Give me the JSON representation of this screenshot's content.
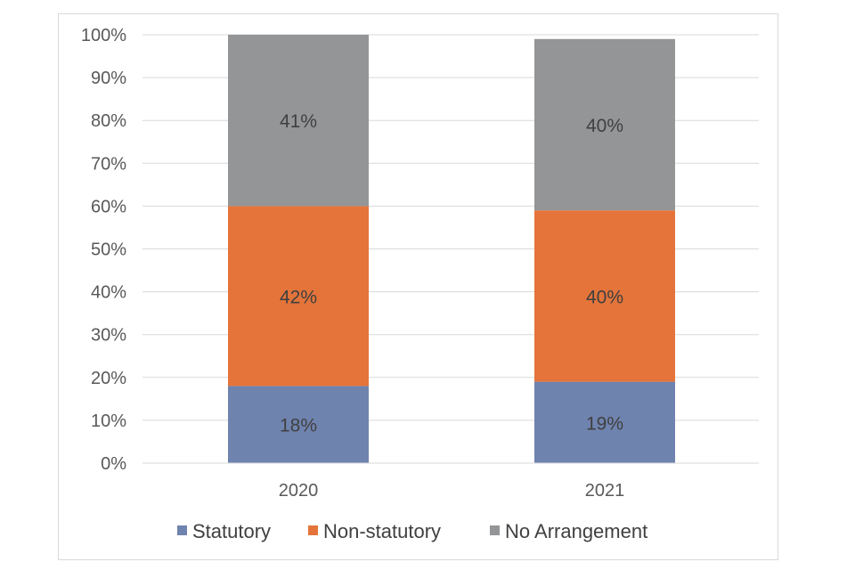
{
  "chart_data": {
    "type": "bar",
    "stacked": true,
    "categories": [
      "2020",
      "2021"
    ],
    "series": [
      {
        "name": "Statutory",
        "values": [
          18,
          19
        ],
        "labels": [
          "18%",
          "19%"
        ],
        "color": "#6F83AF"
      },
      {
        "name": "Non-statutory",
        "values": [
          42,
          40
        ],
        "labels": [
          "42%",
          "40%"
        ],
        "color": "#E4743A"
      },
      {
        "name": "No Arrangement",
        "values": [
          41,
          40
        ],
        "labels": [
          "41%",
          "40%"
        ],
        "color": "#949597"
      }
    ],
    "y_ticks": [
      "0%",
      "10%",
      "20%",
      "30%",
      "40%",
      "50%",
      "60%",
      "70%",
      "80%",
      "90%",
      "100%"
    ],
    "ylim": [
      0,
      100
    ],
    "title": "",
    "xlabel": "",
    "ylabel": "",
    "grid": true,
    "legend_position": "bottom"
  }
}
